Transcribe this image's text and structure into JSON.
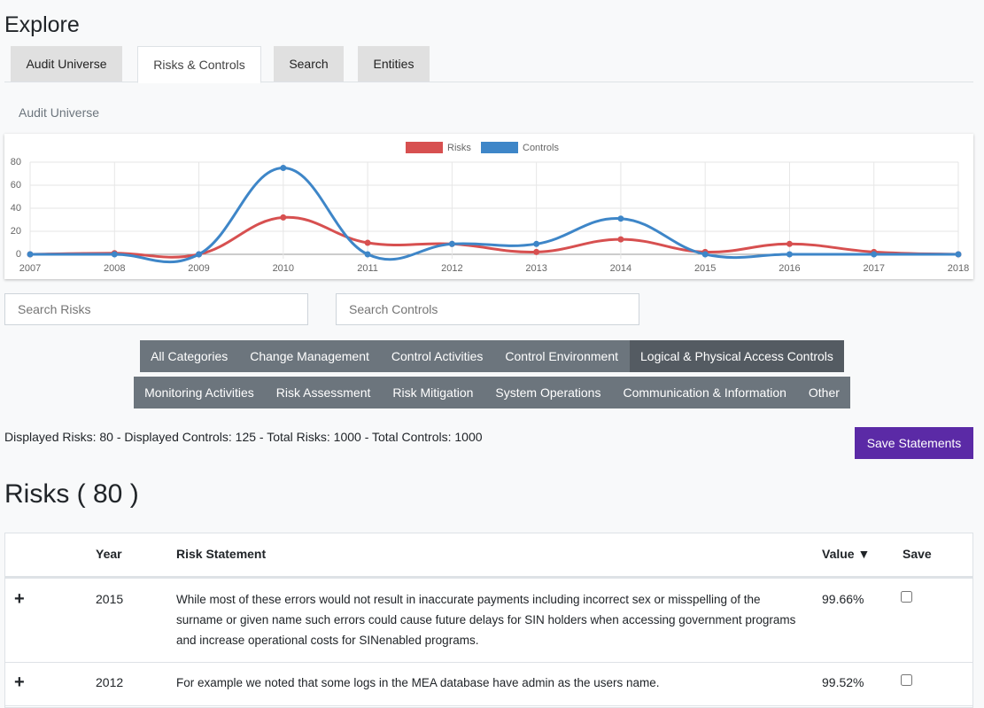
{
  "header": {
    "title": "Explore"
  },
  "tabs": [
    "Audit Universe",
    "Risks & Controls",
    "Search",
    "Entities"
  ],
  "active_tab": 1,
  "section_label": "Audit Universe",
  "chart_data": {
    "type": "line",
    "categories": [
      "2007",
      "2008",
      "2009",
      "2010",
      "2011",
      "2012",
      "2013",
      "2014",
      "2015",
      "2016",
      "2017",
      "2018"
    ],
    "series": [
      {
        "name": "Risks",
        "color": "#d75050",
        "values": [
          0,
          1,
          0,
          32,
          10,
          9,
          2,
          13,
          2,
          9,
          2,
          0
        ]
      },
      {
        "name": "Controls",
        "color": "#3e86c8",
        "values": [
          0,
          0,
          0,
          75,
          0,
          9,
          9,
          31,
          0,
          0,
          0,
          0
        ]
      }
    ],
    "ylim": [
      0,
      80
    ],
    "yticks": [
      0,
      20,
      40,
      60,
      80
    ],
    "grid": true,
    "smooth": true,
    "legend": "top"
  },
  "search": {
    "risks_placeholder": "Search Risks",
    "controls_placeholder": "Search Controls"
  },
  "filters": [
    [
      "All Categories",
      "Change Management",
      "Control Activities",
      "Control Environment",
      "Logical & Physical Access Controls"
    ],
    [
      "Monitoring Activities",
      "Risk Assessment",
      "Risk Mitigation",
      "System Operations",
      "Communication & Information",
      "Other"
    ]
  ],
  "active_filter": [
    0,
    4
  ],
  "stats": "Displayed Risks: 80 - Displayed Controls: 125 - Total Risks: 1000 - Total Controls: 1000",
  "save_button": "Save Statements",
  "risks_heading": "Risks ( 80 )",
  "table": {
    "columns": [
      "",
      "Year",
      "Risk Statement",
      "Value ▼",
      "Save"
    ],
    "rows": [
      [
        "+",
        "2015",
        "While most of these errors would not result in inaccurate payments including incorrect sex or misspelling of the surname or given name such errors could cause future delays for SIN holders when accessing government programs and increase operational costs for SINenabled programs.",
        "99.66%"
      ],
      [
        "+",
        "2012",
        "For example we noted that some logs in the MEA database have admin as the users name.",
        "99.52%"
      ]
    ]
  }
}
